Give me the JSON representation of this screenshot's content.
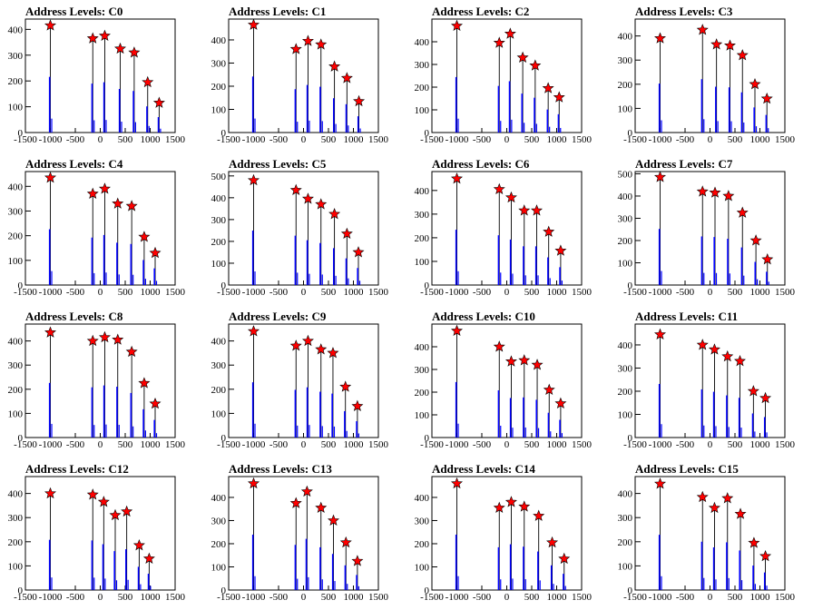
{
  "chart_data": [
    {
      "type": "bar",
      "title": "Address Levels: C0",
      "xlim": [
        -1500,
        1500
      ],
      "ylim": [
        0,
        440
      ],
      "xticks": [
        -1500,
        -1000,
        -500,
        0,
        500,
        1000,
        1500
      ],
      "yticks": [
        0,
        100,
        200,
        300,
        400
      ],
      "peaks": [
        {
          "x": -1000,
          "y": 415
        },
        {
          "x": -150,
          "y": 365
        },
        {
          "x": 90,
          "y": 375
        },
        {
          "x": 400,
          "y": 325
        },
        {
          "x": 680,
          "y": 310
        },
        {
          "x": 950,
          "y": 195
        },
        {
          "x": 1180,
          "y": 115
        }
      ]
    },
    {
      "type": "bar",
      "title": "Address Levels: C1",
      "xlim": [
        -1500,
        1500
      ],
      "ylim": [
        0,
        490
      ],
      "xticks": [
        -1500,
        -1000,
        -500,
        0,
        500,
        1000,
        1500
      ],
      "yticks": [
        0,
        100,
        200,
        300,
        400
      ],
      "peaks": [
        {
          "x": -1000,
          "y": 465
        },
        {
          "x": -150,
          "y": 360
        },
        {
          "x": 90,
          "y": 395
        },
        {
          "x": 350,
          "y": 380
        },
        {
          "x": 620,
          "y": 285
        },
        {
          "x": 870,
          "y": 235
        },
        {
          "x": 1110,
          "y": 135
        }
      ]
    },
    {
      "type": "bar",
      "title": "Address Levels: C2",
      "xlim": [
        -1500,
        1500
      ],
      "ylim": [
        0,
        500
      ],
      "xticks": [
        -1500,
        -1000,
        -500,
        0,
        500,
        1000,
        1500
      ],
      "yticks": [
        0,
        100,
        200,
        300,
        400
      ],
      "peaks": [
        {
          "x": -1000,
          "y": 470
        },
        {
          "x": -150,
          "y": 395
        },
        {
          "x": 70,
          "y": 435
        },
        {
          "x": 320,
          "y": 330
        },
        {
          "x": 570,
          "y": 295
        },
        {
          "x": 830,
          "y": 195
        },
        {
          "x": 1050,
          "y": 155
        }
      ]
    },
    {
      "type": "bar",
      "title": "Address Levels: C3",
      "xlim": [
        -1500,
        1500
      ],
      "ylim": [
        0,
        470
      ],
      "xticks": [
        -1500,
        -1000,
        -500,
        0,
        500,
        1000,
        1500
      ],
      "yticks": [
        0,
        100,
        200,
        300,
        400
      ],
      "peaks": [
        {
          "x": -1000,
          "y": 390
        },
        {
          "x": -150,
          "y": 425
        },
        {
          "x": 130,
          "y": 365
        },
        {
          "x": 400,
          "y": 360
        },
        {
          "x": 650,
          "y": 320
        },
        {
          "x": 900,
          "y": 200
        },
        {
          "x": 1140,
          "y": 140
        }
      ]
    },
    {
      "type": "bar",
      "title": "Address Levels: C4",
      "xlim": [
        -1500,
        1500
      ],
      "ylim": [
        0,
        460
      ],
      "xticks": [
        -1500,
        -1000,
        -500,
        0,
        500,
        1000,
        1500
      ],
      "yticks": [
        0,
        100,
        200,
        300,
        400
      ],
      "peaks": [
        {
          "x": -1000,
          "y": 435
        },
        {
          "x": -150,
          "y": 370
        },
        {
          "x": 90,
          "y": 390
        },
        {
          "x": 350,
          "y": 330
        },
        {
          "x": 630,
          "y": 320
        },
        {
          "x": 880,
          "y": 195
        },
        {
          "x": 1100,
          "y": 130
        }
      ]
    },
    {
      "type": "bar",
      "title": "Address Levels: C5",
      "xlim": [
        -1500,
        1500
      ],
      "ylim": [
        0,
        520
      ],
      "xticks": [
        -1500,
        -1000,
        -500,
        0,
        500,
        1000,
        1500
      ],
      "yticks": [
        0,
        100,
        200,
        300,
        400,
        500
      ],
      "peaks": [
        {
          "x": -1000,
          "y": 480
        },
        {
          "x": -150,
          "y": 435
        },
        {
          "x": 90,
          "y": 395
        },
        {
          "x": 350,
          "y": 370
        },
        {
          "x": 620,
          "y": 325
        },
        {
          "x": 870,
          "y": 235
        },
        {
          "x": 1100,
          "y": 150
        }
      ]
    },
    {
      "type": "bar",
      "title": "Address Levels: C6",
      "xlim": [
        -1500,
        1500
      ],
      "ylim": [
        0,
        480
      ],
      "xticks": [
        -1500,
        -1000,
        -500,
        0,
        500,
        1000,
        1500
      ],
      "yticks": [
        0,
        100,
        200,
        300,
        400
      ],
      "peaks": [
        {
          "x": -1000,
          "y": 450
        },
        {
          "x": -150,
          "y": 405
        },
        {
          "x": 90,
          "y": 370
        },
        {
          "x": 350,
          "y": 315
        },
        {
          "x": 600,
          "y": 315
        },
        {
          "x": 840,
          "y": 225
        },
        {
          "x": 1080,
          "y": 145
        }
      ]
    },
    {
      "type": "bar",
      "title": "Address Levels: C7",
      "xlim": [
        -1500,
        1500
      ],
      "ylim": [
        0,
        510
      ],
      "xticks": [
        -1500,
        -1000,
        -500,
        0,
        500,
        1000,
        1500
      ],
      "yticks": [
        0,
        100,
        200,
        300,
        400,
        500
      ],
      "peaks": [
        {
          "x": -1000,
          "y": 485
        },
        {
          "x": -150,
          "y": 420
        },
        {
          "x": 100,
          "y": 415
        },
        {
          "x": 370,
          "y": 400
        },
        {
          "x": 650,
          "y": 325
        },
        {
          "x": 920,
          "y": 200
        },
        {
          "x": 1150,
          "y": 115
        }
      ]
    },
    {
      "type": "bar",
      "title": "Address Levels: C8",
      "xlim": [
        -1500,
        1500
      ],
      "ylim": [
        0,
        470
      ],
      "xticks": [
        -1500,
        -1000,
        -500,
        0,
        500,
        1000,
        1500
      ],
      "yticks": [
        0,
        100,
        200,
        300,
        400
      ],
      "peaks": [
        {
          "x": -1000,
          "y": 435
        },
        {
          "x": -150,
          "y": 400
        },
        {
          "x": 90,
          "y": 415
        },
        {
          "x": 350,
          "y": 405
        },
        {
          "x": 630,
          "y": 355
        },
        {
          "x": 880,
          "y": 225
        },
        {
          "x": 1100,
          "y": 140
        }
      ]
    },
    {
      "type": "bar",
      "title": "Address Levels: C9",
      "xlim": [
        -1500,
        1500
      ],
      "ylim": [
        0,
        470
      ],
      "xticks": [
        -1500,
        -1000,
        -500,
        0,
        500,
        1000,
        1500
      ],
      "yticks": [
        0,
        100,
        200,
        300,
        400
      ],
      "peaks": [
        {
          "x": -1000,
          "y": 440
        },
        {
          "x": -150,
          "y": 380
        },
        {
          "x": 90,
          "y": 400
        },
        {
          "x": 350,
          "y": 365
        },
        {
          "x": 590,
          "y": 350
        },
        {
          "x": 840,
          "y": 210
        },
        {
          "x": 1080,
          "y": 130
        }
      ]
    },
    {
      "type": "bar",
      "title": "Address Levels: C10",
      "xlim": [
        -1500,
        1500
      ],
      "ylim": [
        0,
        500
      ],
      "xticks": [
        -1500,
        -1000,
        -500,
        0,
        500,
        1000,
        1500
      ],
      "yticks": [
        0,
        100,
        200,
        300,
        400
      ],
      "peaks": [
        {
          "x": -1000,
          "y": 470
        },
        {
          "x": -150,
          "y": 400
        },
        {
          "x": 90,
          "y": 335
        },
        {
          "x": 350,
          "y": 340
        },
        {
          "x": 610,
          "y": 320
        },
        {
          "x": 850,
          "y": 210
        },
        {
          "x": 1080,
          "y": 150
        }
      ]
    },
    {
      "type": "bar",
      "title": "Address Levels: C11",
      "xlim": [
        -1500,
        1500
      ],
      "ylim": [
        0,
        490
      ],
      "xticks": [
        -1500,
        -1000,
        -500,
        0,
        500,
        1000,
        1500
      ],
      "yticks": [
        0,
        100,
        200,
        300,
        400
      ],
      "peaks": [
        {
          "x": -1000,
          "y": 445
        },
        {
          "x": -150,
          "y": 400
        },
        {
          "x": 90,
          "y": 380
        },
        {
          "x": 350,
          "y": 350
        },
        {
          "x": 600,
          "y": 330
        },
        {
          "x": 870,
          "y": 200
        },
        {
          "x": 1110,
          "y": 170
        }
      ]
    },
    {
      "type": "bar",
      "title": "Address Levels: C12",
      "xlim": [
        -1500,
        1500
      ],
      "ylim": [
        0,
        470
      ],
      "xticks": [
        -1500,
        -1000,
        -500,
        0,
        500,
        1000,
        1500
      ],
      "yticks": [
        0,
        100,
        200,
        300,
        400
      ],
      "peaks": [
        {
          "x": -1000,
          "y": 400
        },
        {
          "x": -150,
          "y": 395
        },
        {
          "x": 70,
          "y": 365
        },
        {
          "x": 300,
          "y": 310
        },
        {
          "x": 530,
          "y": 325
        },
        {
          "x": 780,
          "y": 185
        },
        {
          "x": 980,
          "y": 130
        }
      ]
    },
    {
      "type": "bar",
      "title": "Address Levels: C13",
      "xlim": [
        -1500,
        1500
      ],
      "ylim": [
        0,
        490
      ],
      "xticks": [
        -1500,
        -1000,
        -500,
        0,
        500,
        1000,
        1500
      ],
      "yticks": [
        0,
        100,
        200,
        300,
        400
      ],
      "peaks": [
        {
          "x": -1000,
          "y": 460
        },
        {
          "x": -150,
          "y": 375
        },
        {
          "x": 70,
          "y": 425
        },
        {
          "x": 350,
          "y": 355
        },
        {
          "x": 600,
          "y": 300
        },
        {
          "x": 850,
          "y": 205
        },
        {
          "x": 1080,
          "y": 125
        }
      ]
    },
    {
      "type": "bar",
      "title": "Address Levels: C14",
      "xlim": [
        -1500,
        1500
      ],
      "ylim": [
        0,
        490
      ],
      "xticks": [
        -1500,
        -1000,
        -500,
        0,
        500,
        1000,
        1500
      ],
      "yticks": [
        0,
        100,
        200,
        300,
        400
      ],
      "peaks": [
        {
          "x": -1000,
          "y": 460
        },
        {
          "x": -150,
          "y": 355
        },
        {
          "x": 90,
          "y": 380
        },
        {
          "x": 350,
          "y": 360
        },
        {
          "x": 640,
          "y": 320
        },
        {
          "x": 910,
          "y": 205
        },
        {
          "x": 1150,
          "y": 135
        }
      ]
    },
    {
      "type": "bar",
      "title": "Address Levels: C15",
      "xlim": [
        -1500,
        1500
      ],
      "ylim": [
        0,
        470
      ],
      "xticks": [
        -1500,
        -1000,
        -500,
        0,
        500,
        1000,
        1500
      ],
      "yticks": [
        0,
        100,
        200,
        300,
        400
      ],
      "peaks": [
        {
          "x": -1000,
          "y": 440
        },
        {
          "x": -150,
          "y": 385
        },
        {
          "x": 90,
          "y": 340
        },
        {
          "x": 350,
          "y": 380
        },
        {
          "x": 610,
          "y": 315
        },
        {
          "x": 880,
          "y": 195
        },
        {
          "x": 1110,
          "y": 140
        }
      ]
    }
  ],
  "colors": {
    "bar": "#0000ff",
    "marker": "#ff0000",
    "outline": "#000000"
  }
}
